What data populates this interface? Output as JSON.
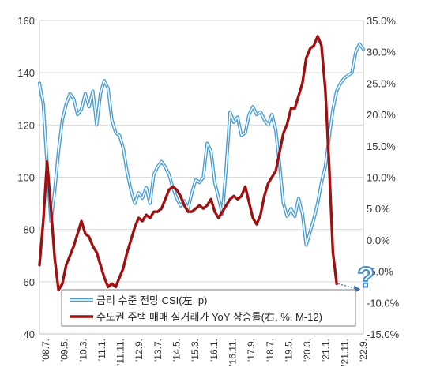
{
  "chart_data": {
    "type": "line",
    "x_labels": [
      "'08.7.",
      "'09.5.",
      "'10.3.",
      "'11.1.",
      "'11.11.",
      "'12.9.",
      "'13.7.",
      "'14.5.",
      "'15.3.",
      "'16.1.",
      "'16.11.",
      "'17.9.",
      "'18.7.",
      "'19.5.",
      "'20.3.",
      "'21.1.",
      "'21.11.",
      "'22.9."
    ],
    "x_start": "2008-07",
    "x_end": "2022-09",
    "y_left": {
      "min": 40,
      "max": 160,
      "ticks": [
        40,
        60,
        80,
        100,
        120,
        140,
        160
      ]
    },
    "y_right": {
      "min": -15,
      "max": 35,
      "ticks": [
        "-15.0%",
        "-10.0%",
        "-5.0%",
        "0.0%",
        "5.0%",
        "10.0%",
        "15.0%",
        "20.0%",
        "25.0%",
        "30.0%",
        "35.0%"
      ]
    },
    "grid": "horizontal",
    "legend_position": "bottom-center",
    "annotation": "?",
    "series": [
      {
        "name": "금리 수준 전망 CSI(左, p)",
        "axis": "left",
        "color": "#4a9fd5",
        "style": "double",
        "points": [
          [
            "2008-07",
            136
          ],
          [
            "2008-09",
            128
          ],
          [
            "2008-11",
            105
          ],
          [
            "2009-01",
            83
          ],
          [
            "2009-03",
            95
          ],
          [
            "2009-05",
            110
          ],
          [
            "2009-07",
            122
          ],
          [
            "2009-09",
            128
          ],
          [
            "2009-11",
            132
          ],
          [
            "2010-01",
            130
          ],
          [
            "2010-03",
            124
          ],
          [
            "2010-05",
            126
          ],
          [
            "2010-07",
            132
          ],
          [
            "2010-09",
            127
          ],
          [
            "2010-11",
            133
          ],
          [
            "2011-01",
            120
          ],
          [
            "2011-03",
            132
          ],
          [
            "2011-05",
            137
          ],
          [
            "2011-07",
            134
          ],
          [
            "2011-09",
            122
          ],
          [
            "2011-11",
            117
          ],
          [
            "2012-01",
            116
          ],
          [
            "2012-03",
            111
          ],
          [
            "2012-05",
            102
          ],
          [
            "2012-07",
            95
          ],
          [
            "2012-09",
            90
          ],
          [
            "2012-11",
            94
          ],
          [
            "2013-01",
            92
          ],
          [
            "2013-03",
            96
          ],
          [
            "2013-05",
            90
          ],
          [
            "2013-07",
            101
          ],
          [
            "2013-09",
            104
          ],
          [
            "2013-11",
            106
          ],
          [
            "2014-01",
            104
          ],
          [
            "2014-03",
            101
          ],
          [
            "2014-05",
            96
          ],
          [
            "2014-07",
            92
          ],
          [
            "2014-09",
            89
          ],
          [
            "2014-11",
            91
          ],
          [
            "2015-01",
            88
          ],
          [
            "2015-03",
            94
          ],
          [
            "2015-05",
            99
          ],
          [
            "2015-07",
            98
          ],
          [
            "2015-09",
            100
          ],
          [
            "2015-11",
            113
          ],
          [
            "2016-01",
            110
          ],
          [
            "2016-03",
            98
          ],
          [
            "2016-05",
            92
          ],
          [
            "2016-07",
            86
          ],
          [
            "2016-09",
            104
          ],
          [
            "2016-11",
            125
          ],
          [
            "2017-01",
            121
          ],
          [
            "2017-03",
            123
          ],
          [
            "2017-05",
            116
          ],
          [
            "2017-07",
            117
          ],
          [
            "2017-09",
            124
          ],
          [
            "2017-11",
            127
          ],
          [
            "2018-01",
            124
          ],
          [
            "2018-03",
            125
          ],
          [
            "2018-05",
            122
          ],
          [
            "2018-07",
            120
          ],
          [
            "2018-09",
            124
          ],
          [
            "2018-11",
            118
          ],
          [
            "2019-01",
            105
          ],
          [
            "2019-03",
            90
          ],
          [
            "2019-05",
            85
          ],
          [
            "2019-07",
            88
          ],
          [
            "2019-09",
            85
          ],
          [
            "2019-11",
            92
          ],
          [
            "2020-01",
            86
          ],
          [
            "2020-03",
            74
          ],
          [
            "2020-05",
            79
          ],
          [
            "2020-07",
            84
          ],
          [
            "2020-09",
            90
          ],
          [
            "2020-11",
            98
          ],
          [
            "2021-01",
            104
          ],
          [
            "2021-03",
            115
          ],
          [
            "2021-05",
            126
          ],
          [
            "2021-07",
            133
          ],
          [
            "2021-09",
            136
          ],
          [
            "2021-11",
            138
          ],
          [
            "2022-01",
            139
          ],
          [
            "2022-03",
            140
          ],
          [
            "2022-05",
            148
          ],
          [
            "2022-07",
            151
          ],
          [
            "2022-09",
            149
          ]
        ]
      },
      {
        "name": "수도권 주택 매매 실거래가 YoY 상승률(右, %, M-12)",
        "axis": "right",
        "color": "#a11010",
        "style": "solid",
        "points": [
          [
            "2008-07",
            -4
          ],
          [
            "2008-09",
            3
          ],
          [
            "2008-11",
            12.5
          ],
          [
            "2009-01",
            5
          ],
          [
            "2009-03",
            -3
          ],
          [
            "2009-05",
            -8
          ],
          [
            "2009-07",
            -7
          ],
          [
            "2009-09",
            -4
          ],
          [
            "2009-11",
            -2.5
          ],
          [
            "2010-01",
            -1
          ],
          [
            "2010-03",
            1
          ],
          [
            "2010-05",
            3
          ],
          [
            "2010-07",
            1
          ],
          [
            "2010-09",
            0.5
          ],
          [
            "2010-11",
            -1
          ],
          [
            "2011-01",
            -2
          ],
          [
            "2011-03",
            -4
          ],
          [
            "2011-05",
            -6
          ],
          [
            "2011-07",
            -7.5
          ],
          [
            "2011-09",
            -7
          ],
          [
            "2011-11",
            -7.5
          ],
          [
            "2012-01",
            -6
          ],
          [
            "2012-03",
            -4.5
          ],
          [
            "2012-05",
            -2
          ],
          [
            "2012-07",
            0
          ],
          [
            "2012-09",
            2
          ],
          [
            "2012-11",
            3.5
          ],
          [
            "2013-01",
            3
          ],
          [
            "2013-03",
            4
          ],
          [
            "2013-05",
            3.5
          ],
          [
            "2013-07",
            4.5
          ],
          [
            "2013-09",
            4.5
          ],
          [
            "2013-11",
            5
          ],
          [
            "2014-01",
            6.5
          ],
          [
            "2014-03",
            8
          ],
          [
            "2014-05",
            8.5
          ],
          [
            "2014-07",
            8
          ],
          [
            "2014-09",
            7
          ],
          [
            "2014-11",
            5.5
          ],
          [
            "2015-01",
            4.5
          ],
          [
            "2015-03",
            4.5
          ],
          [
            "2015-05",
            5
          ],
          [
            "2015-07",
            5.5
          ],
          [
            "2015-09",
            5
          ],
          [
            "2015-11",
            5.5
          ],
          [
            "2016-01",
            6.5
          ],
          [
            "2016-03",
            4.5
          ],
          [
            "2016-05",
            3.5
          ],
          [
            "2016-07",
            4.5
          ],
          [
            "2016-09",
            5.5
          ],
          [
            "2016-11",
            6.5
          ],
          [
            "2017-01",
            7
          ],
          [
            "2017-03",
            6.5
          ],
          [
            "2017-05",
            7
          ],
          [
            "2017-07",
            8.5
          ],
          [
            "2017-09",
            6
          ],
          [
            "2017-11",
            3.5
          ],
          [
            "2018-01",
            2.5
          ],
          [
            "2018-03",
            4
          ],
          [
            "2018-05",
            7
          ],
          [
            "2018-07",
            9
          ],
          [
            "2018-09",
            10
          ],
          [
            "2018-11",
            11
          ],
          [
            "2019-01",
            14
          ],
          [
            "2019-03",
            17
          ],
          [
            "2019-05",
            18.5
          ],
          [
            "2019-07",
            21
          ],
          [
            "2019-09",
            21
          ],
          [
            "2019-11",
            23
          ],
          [
            "2020-01",
            25
          ],
          [
            "2020-03",
            29
          ],
          [
            "2020-05",
            30.5
          ],
          [
            "2020-07",
            31
          ],
          [
            "2020-09",
            32.5
          ],
          [
            "2020-11",
            31
          ],
          [
            "2021-01",
            24
          ],
          [
            "2021-03",
            12
          ],
          [
            "2021-05",
            -2
          ],
          [
            "2021-07",
            -7
          ]
        ]
      }
    ]
  }
}
